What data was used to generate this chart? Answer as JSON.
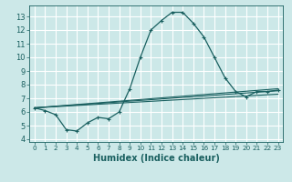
{
  "title": "",
  "xlabel": "Humidex (Indice chaleur)",
  "ylabel": "",
  "bg_color": "#cce8e8",
  "line_color": "#1a6060",
  "xlim": [
    -0.5,
    23.5
  ],
  "ylim": [
    3.8,
    13.8
  ],
  "yticks": [
    4,
    5,
    6,
    7,
    8,
    9,
    10,
    11,
    12,
    13
  ],
  "xticks": [
    0,
    1,
    2,
    3,
    4,
    5,
    6,
    7,
    8,
    9,
    10,
    11,
    12,
    13,
    14,
    15,
    16,
    17,
    18,
    19,
    20,
    21,
    22,
    23
  ],
  "lines": [
    {
      "x": [
        0,
        1,
        2,
        3,
        4,
        5,
        6,
        7,
        8,
        9,
        10,
        11,
        12,
        13,
        14,
        15,
        16,
        17,
        18,
        19,
        20,
        21,
        22,
        23
      ],
      "y": [
        6.3,
        6.1,
        5.8,
        4.7,
        4.6,
        5.2,
        5.6,
        5.5,
        6.0,
        7.7,
        10.0,
        12.0,
        12.7,
        13.3,
        13.3,
        12.5,
        11.5,
        10.0,
        8.5,
        7.5,
        7.1,
        7.5,
        7.5,
        7.6
      ],
      "has_markers": true
    },
    {
      "x": [
        0,
        23
      ],
      "y": [
        6.3,
        7.3
      ],
      "has_markers": false
    },
    {
      "x": [
        0,
        23
      ],
      "y": [
        6.3,
        7.55
      ],
      "has_markers": false
    },
    {
      "x": [
        0,
        23
      ],
      "y": [
        6.3,
        7.7
      ],
      "has_markers": false
    }
  ]
}
